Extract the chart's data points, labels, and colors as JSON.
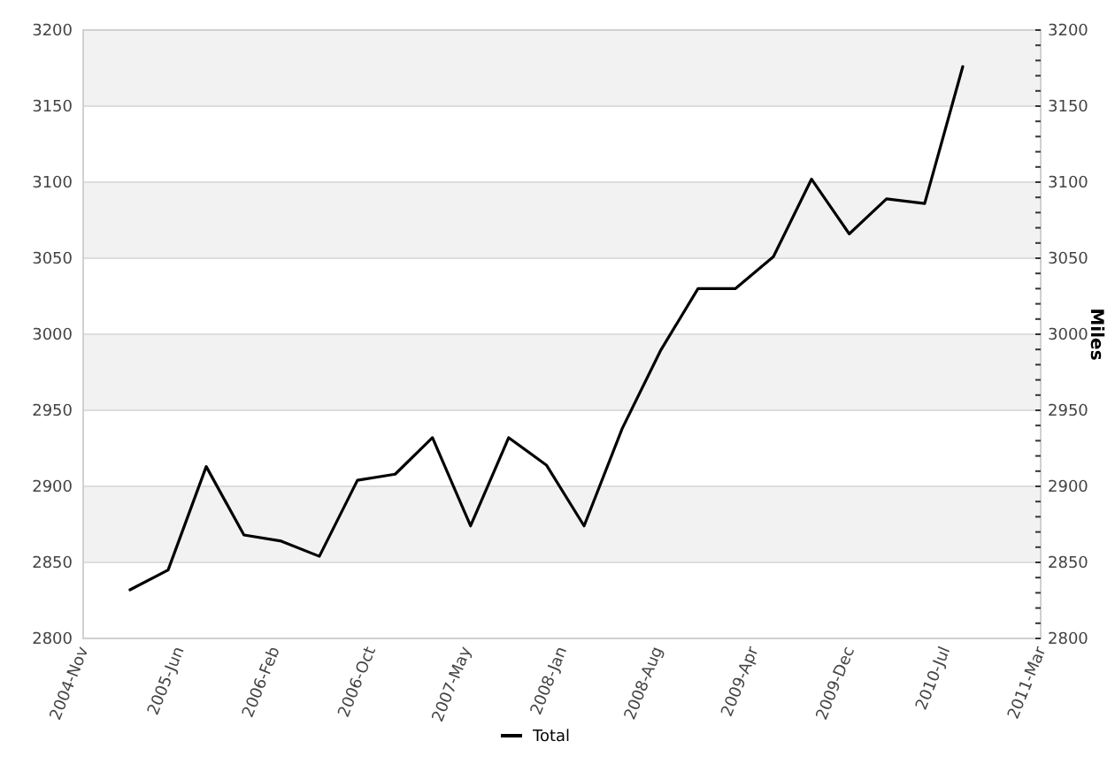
{
  "chart_data": {
    "type": "line",
    "y2label": "Miles",
    "x": [
      "2005-03",
      "2005-06",
      "2005-09",
      "2005-12",
      "2006-03",
      "2006-06",
      "2006-09",
      "2006-12",
      "2007-03",
      "2007-06",
      "2007-09",
      "2007-12",
      "2008-03",
      "2008-06",
      "2008-09",
      "2008-12",
      "2009-03",
      "2009-06",
      "2009-09",
      "2009-12",
      "2010-03",
      "2010-06",
      "2010-09"
    ],
    "series": [
      {
        "name": "Total",
        "color": "#000000",
        "values": [
          2832,
          2845,
          2913,
          2868,
          2864,
          2854,
          2904,
          2908,
          2932,
          2874,
          2932,
          2914,
          2874,
          2938,
          2989,
          3030,
          3030,
          3051,
          3102,
          3066,
          3089,
          3086,
          3176
        ]
      }
    ],
    "xlim": [
      "2004-11-08",
      "2011-03-08"
    ],
    "xticks": [
      {
        "value": "2004-11-08",
        "label": "2004-Nov"
      },
      {
        "value": "2005-06-27",
        "label": "2005-Jun"
      },
      {
        "value": "2006-02-13",
        "label": "2006-Feb"
      },
      {
        "value": "2006-10-02",
        "label": "2006-Oct"
      },
      {
        "value": "2007-05-21",
        "label": "2007-May"
      },
      {
        "value": "2008-01-07",
        "label": "2008-Jan"
      },
      {
        "value": "2008-08-25",
        "label": "2008-Aug"
      },
      {
        "value": "2009-04-13",
        "label": "2009-Apr"
      },
      {
        "value": "2009-12-01",
        "label": "2009-Dec"
      },
      {
        "value": "2010-07-20",
        "label": "2010-Jul"
      },
      {
        "value": "2011-03-08",
        "label": "2011-Mar"
      }
    ],
    "ylim": [
      2800,
      3200
    ],
    "yticks": [
      2800,
      2850,
      2900,
      2950,
      3000,
      3050,
      3100,
      3150,
      3200
    ],
    "y2lim": [
      2800,
      3200
    ],
    "y2ticks": [
      2800,
      {
        "value": 2810,
        "label": null
      },
      {
        "value": 2820,
        "label": null
      },
      {
        "value": 2830,
        "label": null
      },
      {
        "value": 2840,
        "label": null
      },
      2850,
      {
        "value": 2860,
        "label": null
      },
      {
        "value": 2870,
        "label": null
      },
      {
        "value": 2880,
        "label": null
      },
      {
        "value": 2890,
        "label": null
      },
      2900,
      {
        "value": 2910,
        "label": null
      },
      {
        "value": 2920,
        "label": null
      },
      {
        "value": 2930,
        "label": null
      },
      {
        "value": 2940,
        "label": null
      },
      2950,
      {
        "value": 2960,
        "label": null
      },
      {
        "value": 2970,
        "label": null
      },
      {
        "value": 2980,
        "label": null
      },
      {
        "value": 2990,
        "label": null
      },
      3000,
      {
        "value": 3010,
        "label": null
      },
      {
        "value": 3020,
        "label": null
      },
      {
        "value": 3030,
        "label": null
      },
      {
        "value": 3040,
        "label": null
      },
      3050,
      {
        "value": 3060,
        "label": null
      },
      {
        "value": 3070,
        "label": null
      },
      {
        "value": 3080,
        "label": null
      },
      {
        "value": 3090,
        "label": null
      },
      3100,
      {
        "value": 3110,
        "label": null
      },
      {
        "value": 3120,
        "label": null
      },
      {
        "value": 3130,
        "label": null
      },
      {
        "value": 3140,
        "label": null
      },
      3150,
      {
        "value": 3160,
        "label": null
      },
      {
        "value": 3170,
        "label": null
      },
      {
        "value": 3180,
        "label": null
      },
      {
        "value": 3190,
        "label": null
      },
      3200
    ],
    "grid": "y",
    "legend": "bottom"
  }
}
